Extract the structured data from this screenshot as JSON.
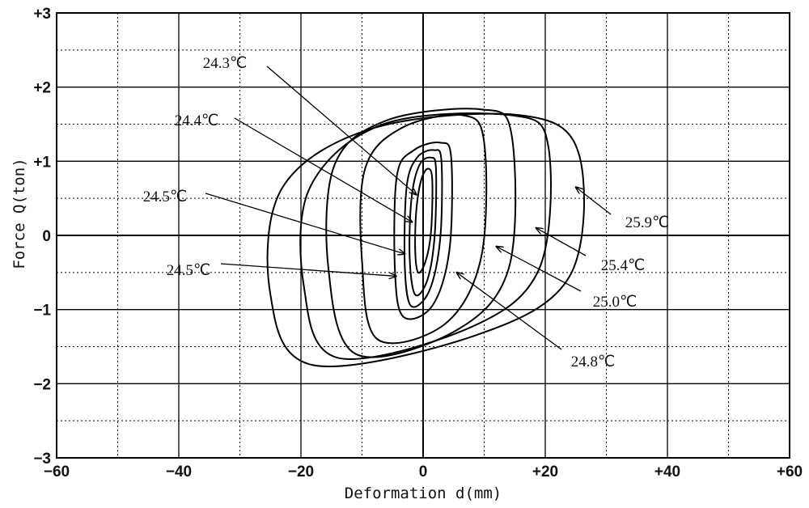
{
  "chart_data": {
    "type": "line",
    "title": "",
    "xlabel": "Deformation d(mm)",
    "ylabel": "Force Q(ton)",
    "xlim": [
      -60,
      60
    ],
    "ylim": [
      -3,
      3
    ],
    "x_ticks": [
      {
        "value": -60,
        "label": "−60"
      },
      {
        "value": -40,
        "label": "−40"
      },
      {
        "value": -20,
        "label": "−20"
      },
      {
        "value": 0,
        "label": "0"
      },
      {
        "value": 20,
        "label": "+20"
      },
      {
        "value": 40,
        "label": "+40"
      },
      {
        "value": 60,
        "label": "+60"
      }
    ],
    "y_ticks": [
      {
        "value": 3,
        "label": "+3"
      },
      {
        "value": 2,
        "label": "+2"
      },
      {
        "value": 1,
        "label": "+1"
      },
      {
        "value": 0,
        "label": "0"
      },
      {
        "value": -1,
        "label": "−1"
      },
      {
        "value": -2,
        "label": "−2"
      },
      {
        "value": -3,
        "label": "−3"
      }
    ],
    "grid": {
      "major": "solid",
      "minor": "dotted"
    },
    "series": [
      {
        "name": "24.3℃",
        "x": [
          1.5,
          1.3,
          0.4,
          -0.8,
          -1.3,
          -1.1,
          -0.3,
          0.8
        ],
        "y": [
          0.75,
          0.05,
          -0.35,
          -0.5,
          -0.2,
          0.35,
          0.75,
          0.9
        ]
      },
      {
        "name": "24.4℃",
        "x": [
          2.1,
          1.9,
          0.7,
          -1.3,
          -2.2,
          -1.9,
          -0.6,
          1.3
        ],
        "y": [
          0.9,
          0.0,
          -0.6,
          -0.8,
          -0.3,
          0.5,
          0.95,
          1.05
        ]
      },
      {
        "name": "24.5℃",
        "x": [
          3.0,
          2.8,
          1.0,
          -2.0,
          -3.0,
          -2.7,
          -1.0,
          1.8
        ],
        "y": [
          1.0,
          -0.05,
          -0.75,
          -0.95,
          -0.4,
          0.65,
          1.05,
          1.15
        ]
      },
      {
        "name": "24.5℃",
        "x": [
          4.6,
          4.3,
          1.5,
          -3.2,
          -4.6,
          -4.3,
          -1.5,
          2.8
        ],
        "y": [
          1.05,
          -0.2,
          -0.95,
          -1.1,
          -0.5,
          0.8,
          1.15,
          1.25
        ]
      },
      {
        "name": "24.8℃",
        "x": [
          10.0,
          9.5,
          3.5,
          -7.5,
          -10.0,
          -9.5,
          -3.5,
          6.5
        ],
        "y": [
          1.25,
          -0.3,
          -1.2,
          -1.4,
          -0.35,
          0.9,
          1.45,
          1.62
        ]
      },
      {
        "name": "25.0℃",
        "x": [
          14.5,
          14.0,
          5.0,
          -11.0,
          -15.5,
          -14.5,
          -6.0,
          9.5
        ],
        "y": [
          1.35,
          -0.45,
          -1.3,
          -1.6,
          -0.45,
          0.95,
          1.55,
          1.7
        ]
      },
      {
        "name": "25.4℃",
        "x": [
          20.5,
          19.0,
          7.5,
          -14.0,
          -19.5,
          -18.5,
          -6.5,
          14.5
        ],
        "y": [
          1.2,
          -0.45,
          -1.25,
          -1.65,
          -0.7,
          0.65,
          1.5,
          1.62
        ]
      },
      {
        "name": "25.9℃",
        "x": [
          25.5,
          24.0,
          8.5,
          -18.0,
          -25.0,
          -23.0,
          -8.0,
          16.0
        ],
        "y": [
          1.1,
          -0.55,
          -1.35,
          -1.75,
          -0.8,
          0.65,
          1.45,
          1.62
        ]
      }
    ],
    "annotations": [
      {
        "label": "24.3℃",
        "series_index": 0,
        "target": [
          -1.1,
          0.55
        ]
      },
      {
        "label": "24.4℃",
        "series_index": 1,
        "target": [
          -1.8,
          0.18
        ]
      },
      {
        "label": "24.5℃",
        "series_index": 2,
        "target": [
          -3.0,
          -0.25
        ]
      },
      {
        "label": "24.5℃",
        "series_index": 3,
        "target": [
          -4.4,
          -0.55
        ]
      },
      {
        "label": "24.8℃",
        "series_index": 4,
        "target": [
          5.5,
          -0.5
        ]
      },
      {
        "label": "25.0℃",
        "series_index": 5,
        "target": [
          12.0,
          -0.15
        ]
      },
      {
        "label": "25.4℃",
        "series_index": 6,
        "target": [
          18.5,
          0.1
        ]
      },
      {
        "label": "25.9℃",
        "series_index": 7,
        "target": [
          25.0,
          0.65
        ]
      }
    ]
  }
}
